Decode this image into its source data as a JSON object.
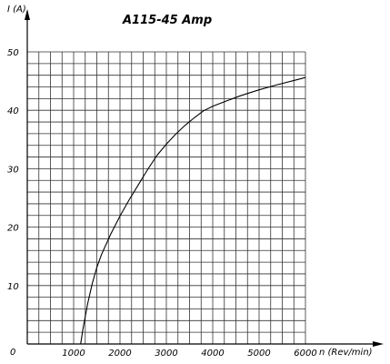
{
  "chart_data": {
    "type": "line",
    "title": "A115-45 Amp",
    "xlabel": "n (Rev/min)",
    "ylabel": "I (A)",
    "xlim": [
      0,
      6000
    ],
    "ylim": [
      0,
      50
    ],
    "grid": true,
    "x_tick_labels": [
      "1000",
      "2000",
      "3000",
      "4000",
      "5000",
      "6000"
    ],
    "y_tick_labels": [
      "10",
      "20",
      "30",
      "40",
      "50"
    ],
    "origin_label": "0",
    "series": [
      {
        "x": [
          1150,
          1200,
          1300,
          1400,
          1500,
          1600,
          1800,
          2000,
          2200,
          2400,
          2600,
          2800,
          3000,
          3200,
          3400,
          3600,
          3800,
          4000,
          4300,
          4600,
          5000,
          5400,
          5800,
          6000
        ],
        "y": [
          0,
          2.5,
          6.8,
          10.3,
          13.1,
          15.3,
          18.8,
          21.9,
          24.7,
          27.3,
          29.9,
          32.3,
          34.2,
          35.9,
          37.4,
          38.7,
          39.9,
          40.7,
          41.6,
          42.5,
          43.5,
          44.4,
          45.2,
          45.6
        ]
      }
    ]
  }
}
